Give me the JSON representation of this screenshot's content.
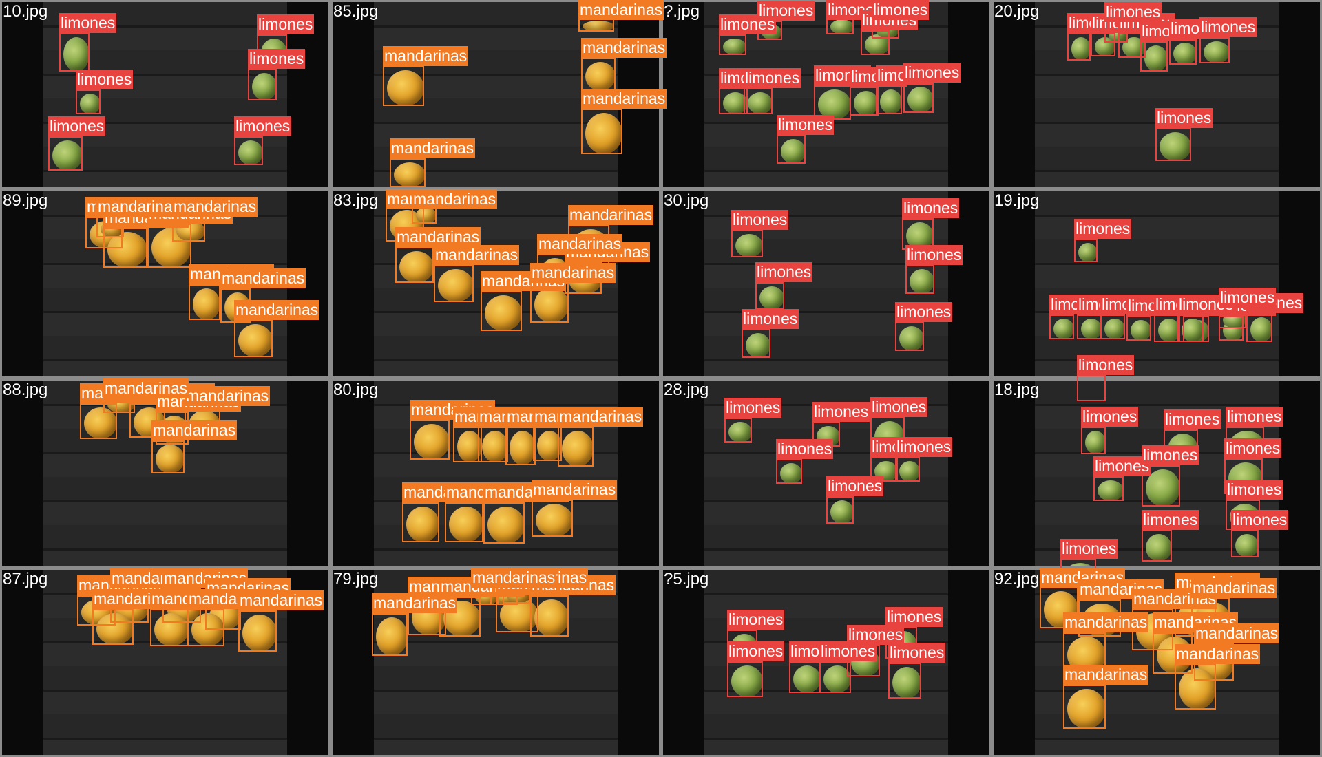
{
  "classes": {
    "limones": {
      "label": "limones",
      "color": "#e8433f"
    },
    "mandarinas": {
      "label": "mandarinas",
      "color": "#f27a22"
    }
  },
  "tiles": [
    {
      "name": "10.jpg",
      "cls": "limones",
      "count": 6
    },
    {
      "name": "85.jpg",
      "cls": "mandarinas",
      "count": 5
    },
    {
      "name": "?.jpg",
      "cls": "limones",
      "count": 12
    },
    {
      "name": "20.jpg",
      "cls": "limones",
      "count": 8
    },
    {
      "name": "89.jpg",
      "cls": "mandarinas",
      "count": 8
    },
    {
      "name": "83.jpg",
      "cls": "mandarinas",
      "count": 9
    },
    {
      "name": "30.jpg",
      "cls": "limones",
      "count": 6
    },
    {
      "name": "19.jpg",
      "cls": "limones",
      "count": 12
    },
    {
      "name": "88.jpg",
      "cls": "mandarinas",
      "count": 6
    },
    {
      "name": "80.jpg",
      "cls": "mandarinas",
      "count": 10
    },
    {
      "name": "28.jpg",
      "cls": "limones",
      "count": 7
    },
    {
      "name": "18.jpg",
      "cls": "limones",
      "count": 10
    },
    {
      "name": "87.jpg",
      "cls": "mandarinas",
      "count": 8
    },
    {
      "name": "79.jpg",
      "cls": "mandarinas",
      "count": 8
    },
    {
      "name": "?5.jpg",
      "cls": "limones",
      "count": 7
    },
    {
      "name": "92.jpg",
      "cls": "mandarinas",
      "count": 10
    }
  ]
}
